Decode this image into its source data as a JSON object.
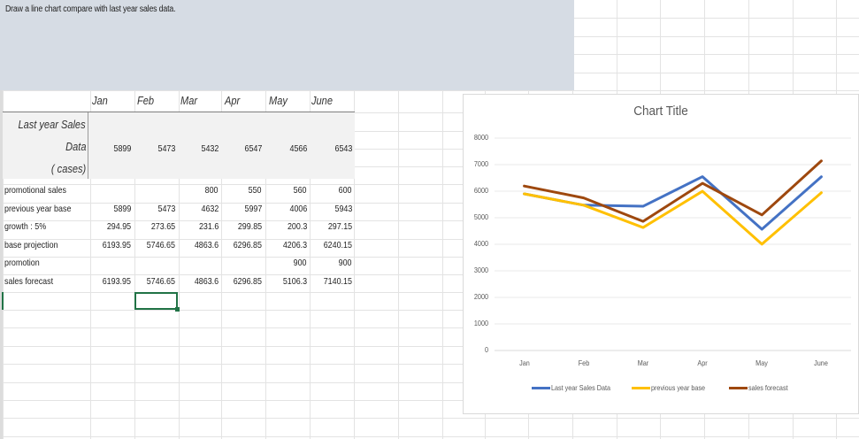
{
  "textbox": {
    "instruction": "Draw a line chart compare with last year sales data."
  },
  "table": {
    "months": [
      "Jan",
      "Feb",
      "Mar",
      "Apr",
      "May",
      "June"
    ],
    "last_year_sales": {
      "label_lines": [
        "Last year Sales",
        "Data",
        "( cases)"
      ],
      "values": [
        "5899",
        "5473",
        "5432",
        "6547",
        "4566",
        "6543"
      ]
    },
    "rows": [
      {
        "label": "promotional sales",
        "values": [
          "",
          "",
          "800",
          "550",
          "560",
          "600"
        ]
      },
      {
        "label": "previous year base",
        "values": [
          "5899",
          "5473",
          "4632",
          "5997",
          "4006",
          "5943"
        ]
      },
      {
        "label": "growth : 5%",
        "values": [
          "294.95",
          "273.65",
          "231.6",
          "299.85",
          "200.3",
          "297.15"
        ]
      },
      {
        "label": "base projection",
        "values": [
          "6193.95",
          "5746.65",
          "4863.6",
          "6296.85",
          "4206.3",
          "6240.15"
        ]
      },
      {
        "label": "promotion",
        "values": [
          "",
          "",
          "",
          "",
          "900",
          "900"
        ]
      },
      {
        "label": "sales forecast",
        "values": [
          "6193.95",
          "5746.65",
          "4863.6",
          "6296.85",
          "5106.3",
          "7140.15"
        ]
      }
    ]
  },
  "chart": {
    "title": "Chart Title",
    "y_ticks": [
      "8000",
      "7000",
      "6000",
      "5000",
      "4000",
      "3000",
      "2000",
      "1000",
      "0"
    ],
    "x_ticks": [
      "Jan",
      "Feb",
      "Mar",
      "Apr",
      "May",
      "June"
    ],
    "legend": [
      {
        "label": "Last year Sales Data",
        "color": "#4472c4"
      },
      {
        "label": "previous year base",
        "color": "#ffc000"
      },
      {
        "label": "sales forecast",
        "color": "#9e480e"
      }
    ]
  },
  "chart_data": {
    "type": "line",
    "title": "Chart Title",
    "categories": [
      "Jan",
      "Feb",
      "Mar",
      "Apr",
      "May",
      "June"
    ],
    "series": [
      {
        "name": "Last year Sales Data",
        "color": "#4472c4",
        "values": [
          5899,
          5473,
          5432,
          6547,
          4566,
          6543
        ]
      },
      {
        "name": "previous year base",
        "color": "#ffc000",
        "values": [
          5899,
          5473,
          4632,
          5997,
          4006,
          5943
        ]
      },
      {
        "name": "sales forecast",
        "color": "#9e480e",
        "values": [
          6193.95,
          5746.65,
          4863.6,
          6296.85,
          5106.3,
          7140.15
        ]
      }
    ],
    "xlabel": "",
    "ylabel": "",
    "ylim": [
      0,
      8000
    ],
    "y_tick_step": 1000,
    "grid": true,
    "legend_position": "bottom"
  }
}
